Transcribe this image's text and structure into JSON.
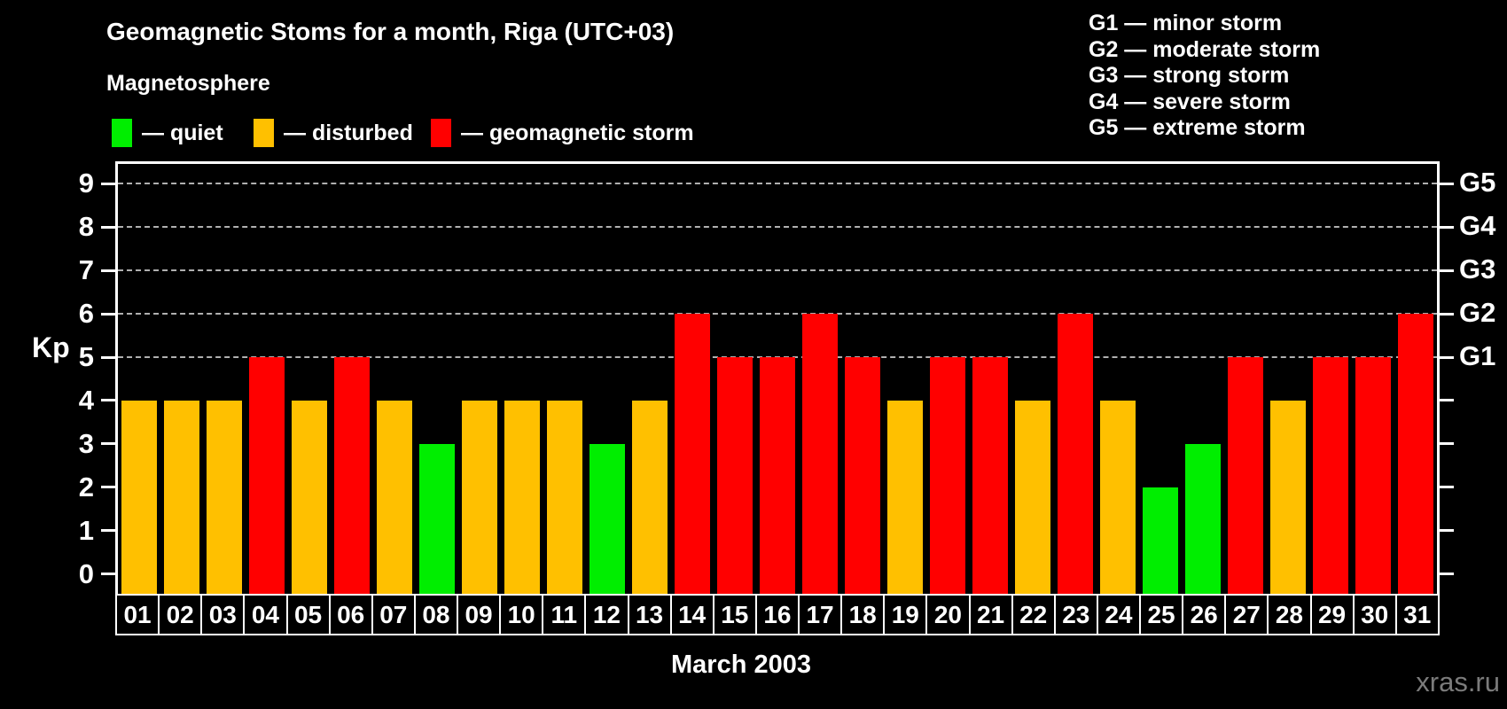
{
  "title": "Geomagnetic Stoms for a month, Riga (UTC+03)",
  "watermark": "xras.ru",
  "magnetosphere_legend": {
    "title": "Magnetosphere",
    "items": [
      {
        "key": "quiet",
        "label": "— quiet",
        "color": "#00ee00"
      },
      {
        "key": "disturbed",
        "label": "— disturbed",
        "color": "#ffc000"
      },
      {
        "key": "storm",
        "label": "— geomagnetic storm",
        "color": "#ff0000"
      }
    ]
  },
  "gscale_legend": {
    "items": [
      {
        "label": "G1 — minor storm"
      },
      {
        "label": "G2 — moderate storm"
      },
      {
        "label": "G3 — strong storm"
      },
      {
        "label": "G4 — severe storm"
      },
      {
        "label": "G5 — extreme storm"
      }
    ]
  },
  "chart_data": {
    "type": "bar",
    "title": "Geomagnetic Stoms for a month, Riga (UTC+03)",
    "xlabel": "March 2003",
    "ylabel": "Kp",
    "ylim": [
      -0.45,
      9.45
    ],
    "yticks": [
      0,
      1,
      2,
      3,
      4,
      5,
      6,
      7,
      8,
      9
    ],
    "gridlines_at": [
      5,
      6,
      7,
      8,
      9
    ],
    "grid": "dashed horizontal at storm levels only",
    "right_axis_labels": [
      {
        "kp": 5,
        "label": "G1"
      },
      {
        "kp": 6,
        "label": "G2"
      },
      {
        "kp": 7,
        "label": "G3"
      },
      {
        "kp": 8,
        "label": "G4"
      },
      {
        "kp": 9,
        "label": "G5"
      }
    ],
    "categories": [
      "01",
      "02",
      "03",
      "04",
      "05",
      "06",
      "07",
      "08",
      "09",
      "10",
      "11",
      "12",
      "13",
      "14",
      "15",
      "16",
      "17",
      "18",
      "19",
      "20",
      "21",
      "22",
      "23",
      "24",
      "25",
      "26",
      "27",
      "28",
      "29",
      "30",
      "31"
    ],
    "values": [
      4,
      4,
      4,
      5,
      4,
      5,
      4,
      3,
      4,
      4,
      4,
      3,
      4,
      6,
      5,
      5,
      6,
      5,
      4,
      5,
      5,
      4,
      6,
      4,
      2,
      3,
      5,
      4,
      5,
      5,
      6
    ],
    "statuses": [
      "disturbed",
      "disturbed",
      "disturbed",
      "storm",
      "disturbed",
      "storm",
      "disturbed",
      "quiet",
      "disturbed",
      "disturbed",
      "disturbed",
      "quiet",
      "disturbed",
      "storm",
      "storm",
      "storm",
      "storm",
      "storm",
      "disturbed",
      "storm",
      "storm",
      "disturbed",
      "storm",
      "disturbed",
      "quiet",
      "quiet",
      "storm",
      "disturbed",
      "storm",
      "storm",
      "storm"
    ],
    "colors": {
      "quiet": "#00ee00",
      "disturbed": "#ffc000",
      "storm": "#ff0000"
    },
    "legend_position": "top-left"
  }
}
